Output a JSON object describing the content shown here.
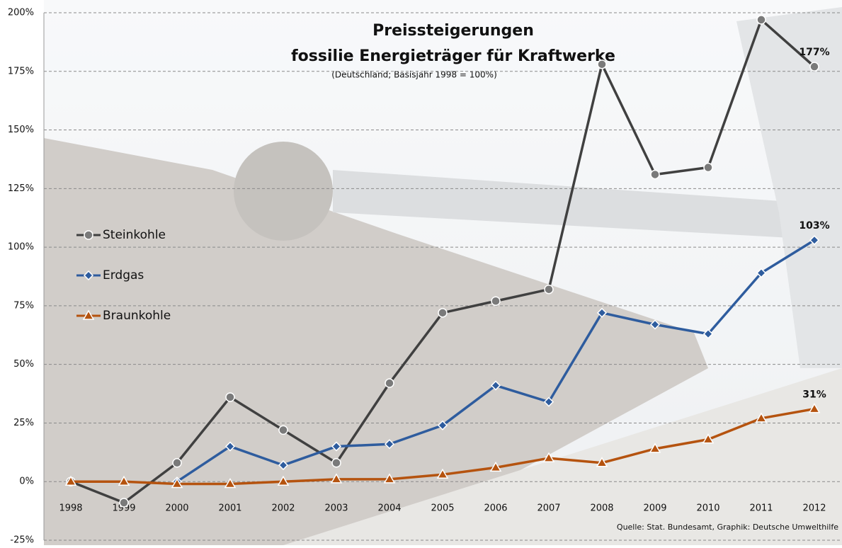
{
  "chart_data": {
    "type": "line",
    "title": "Preissteigerungen",
    "title2": "fossilie Energieträger für Kraftwerke",
    "subtitle": "(Deutschland; Basisjahr 1998 = 100%)",
    "source": "Quelle: Stat. Bundesamt, Graphik: Deutsche Umwelthilfe",
    "categories": [
      "1998",
      "1999",
      "2000",
      "2001",
      "2002",
      "2003",
      "2004",
      "2005",
      "2006",
      "2007",
      "2008",
      "2009",
      "2010",
      "2011",
      "2012"
    ],
    "series": [
      {
        "name": "Steinkohle",
        "color": "#404040",
        "marker": "circle",
        "values": [
          0,
          -9,
          8,
          36,
          22,
          8,
          42,
          72,
          77,
          82,
          178,
          131,
          134,
          197,
          177
        ],
        "value_labels": [
          null,
          null,
          null,
          null,
          null,
          null,
          null,
          null,
          null,
          null,
          null,
          null,
          null,
          null,
          "177%"
        ]
      },
      {
        "name": "Erdgas",
        "color": "#2e5c9e",
        "marker": "diamond",
        "values": [
          null,
          null,
          0,
          15,
          7,
          15,
          16,
          24,
          41,
          34,
          72,
          67,
          63,
          89,
          103
        ],
        "value_labels": [
          null,
          null,
          null,
          null,
          null,
          null,
          null,
          null,
          null,
          null,
          null,
          null,
          null,
          null,
          "103%"
        ]
      },
      {
        "name": "Braunkohle",
        "color": "#b5530f",
        "marker": "triangle",
        "values": [
          0,
          0,
          -1,
          -1,
          0,
          1,
          1,
          3,
          6,
          10,
          8,
          14,
          18,
          27,
          31
        ],
        "value_labels": [
          null,
          null,
          null,
          null,
          null,
          null,
          null,
          null,
          null,
          null,
          null,
          null,
          null,
          null,
          "31%"
        ]
      }
    ],
    "ylim": [
      -25,
      200
    ],
    "yticks": [
      {
        "value": -25,
        "label": "-25%"
      },
      {
        "value": 0,
        "label": "0%"
      },
      {
        "value": 25,
        "label": "25%"
      },
      {
        "value": 50,
        "label": "50%"
      },
      {
        "value": 75,
        "label": "75%"
      },
      {
        "value": 100,
        "label": "100%"
      },
      {
        "value": 125,
        "label": "125%"
      },
      {
        "value": 150,
        "label": "150%"
      },
      {
        "value": 175,
        "label": "175%"
      },
      {
        "value": 200,
        "label": "200%"
      }
    ],
    "grid": true,
    "legend": "left"
  }
}
